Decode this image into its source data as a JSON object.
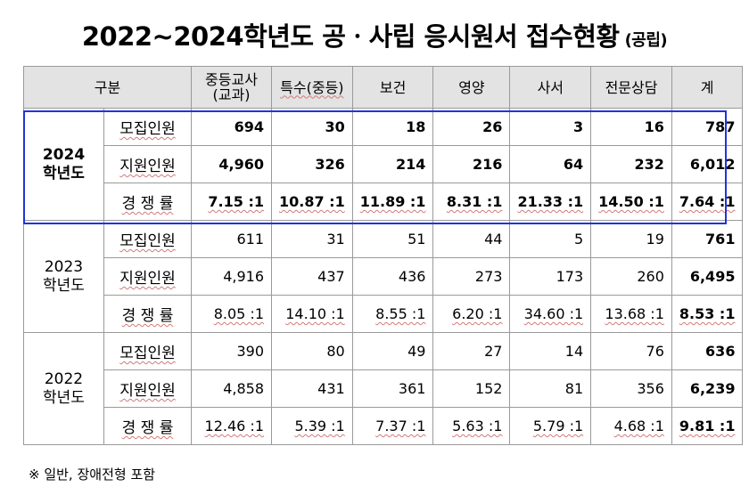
{
  "title": "2022~2024학년도 공ㆍ사립 응시원서 접수현황",
  "title_sub": "(공립)",
  "header": {
    "group": "구분",
    "columns": [
      "중등교사\n(교과)",
      "특수(중등)",
      "보건",
      "영양",
      "사서",
      "전문상담",
      "계"
    ]
  },
  "row_labels": [
    "모집인원",
    "지원인원",
    "경 쟁 률"
  ],
  "years": [
    {
      "label": "2024\n학년도",
      "rows": [
        [
          "694",
          "30",
          "18",
          "26",
          "3",
          "16",
          "787"
        ],
        [
          "4,960",
          "326",
          "214",
          "216",
          "64",
          "232",
          "6,012"
        ],
        [
          "7.15 :1",
          "10.87 :1",
          "11.89 :1",
          "8.31 :1",
          "21.33 :1",
          "14.50 :1",
          "7.64 :1"
        ]
      ]
    },
    {
      "label": "2023\n학년도",
      "rows": [
        [
          "611",
          "31",
          "51",
          "44",
          "5",
          "19",
          "761"
        ],
        [
          "4,916",
          "437",
          "436",
          "273",
          "173",
          "260",
          "6,495"
        ],
        [
          "8.05 :1",
          "14.10 :1",
          "8.55 :1",
          "6.20 :1",
          "34.60 :1",
          "13.68 :1",
          "8.53 :1"
        ]
      ]
    },
    {
      "label": "2022\n학년도",
      "rows": [
        [
          "390",
          "80",
          "49",
          "27",
          "14",
          "76",
          "636"
        ],
        [
          "4,858",
          "431",
          "361",
          "152",
          "81",
          "356",
          "6,239"
        ],
        [
          "12.46 :1",
          "5.39 :1",
          "7.37 :1",
          "5.63 :1",
          "5.79 :1",
          "4.68 :1",
          "9.81 :1"
        ]
      ]
    }
  ],
  "note": "※ 일반, 장애전형 포함",
  "colors": {
    "header_bg": "#e3e3e3",
    "highlight_border": "#2233dd",
    "grid": "#9a9a9a"
  }
}
